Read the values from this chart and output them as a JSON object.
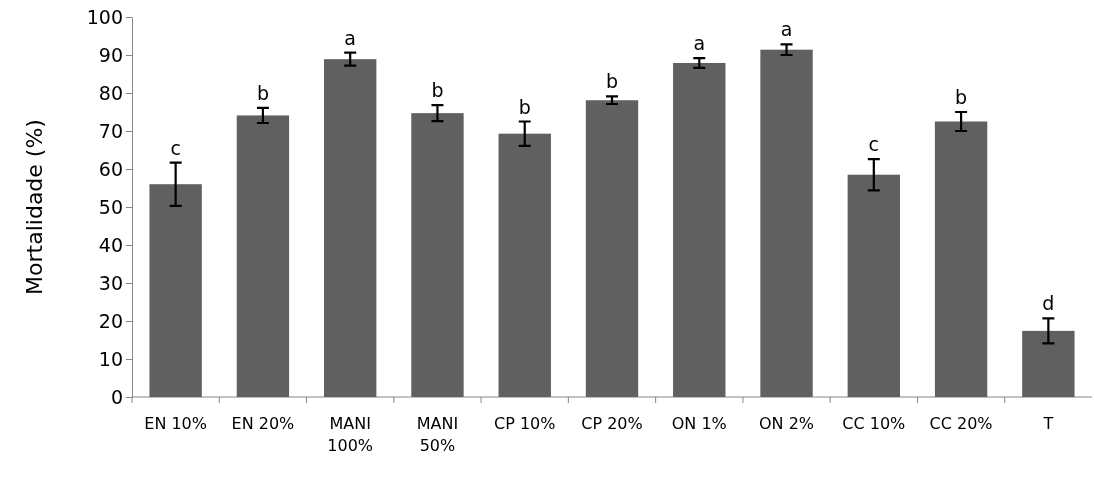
{
  "chart_data": {
    "type": "bar",
    "ylabel": "Mortalidade (%)",
    "categories": [
      "EN 10%",
      "EN 20%",
      "MANI 100%",
      "MANI 50%",
      "CP 10%",
      "CP 20%",
      "ON 1%",
      "ON 2%",
      "CC 10%",
      "CC 20%",
      "T"
    ],
    "values": [
      56,
      74.1,
      88.9,
      74.7,
      69.3,
      78.1,
      87.9,
      91.4,
      58.5,
      72.5,
      17.4
    ],
    "errors": [
      5.7,
      2,
      1.7,
      2.1,
      3.2,
      1,
      1.3,
      1.4,
      4.1,
      2.5,
      3.3
    ],
    "color": "#606060",
    "ylim": [
      0,
      100
    ],
    "yticks": [
      0,
      10,
      20,
      30,
      40,
      50,
      60,
      70,
      80,
      90,
      100
    ],
    "grid": false,
    "annotations": [
      {
        "text": "c",
        "x": "EN 10%",
        "y": 61.7
      },
      {
        "text": "b",
        "x": "EN 20%",
        "y": 76.1
      },
      {
        "text": "a",
        "x": "MANI 100%",
        "y": 90.6
      },
      {
        "text": "b",
        "x": "MANI 50%",
        "y": 76.8
      },
      {
        "text": "b",
        "x": "CP 10%",
        "y": 72.5
      },
      {
        "text": "b",
        "x": "CP 20%",
        "y": 79.1
      },
      {
        "text": "a",
        "x": "ON 1%",
        "y": 89.2
      },
      {
        "text": "a",
        "x": "ON 2%",
        "y": 92.8
      },
      {
        "text": "c",
        "x": "CC 10%",
        "y": 62.6
      },
      {
        "text": "b",
        "x": "CC 20%",
        "y": 75
      },
      {
        "text": "d",
        "x": "T",
        "y": 20.7
      }
    ]
  }
}
